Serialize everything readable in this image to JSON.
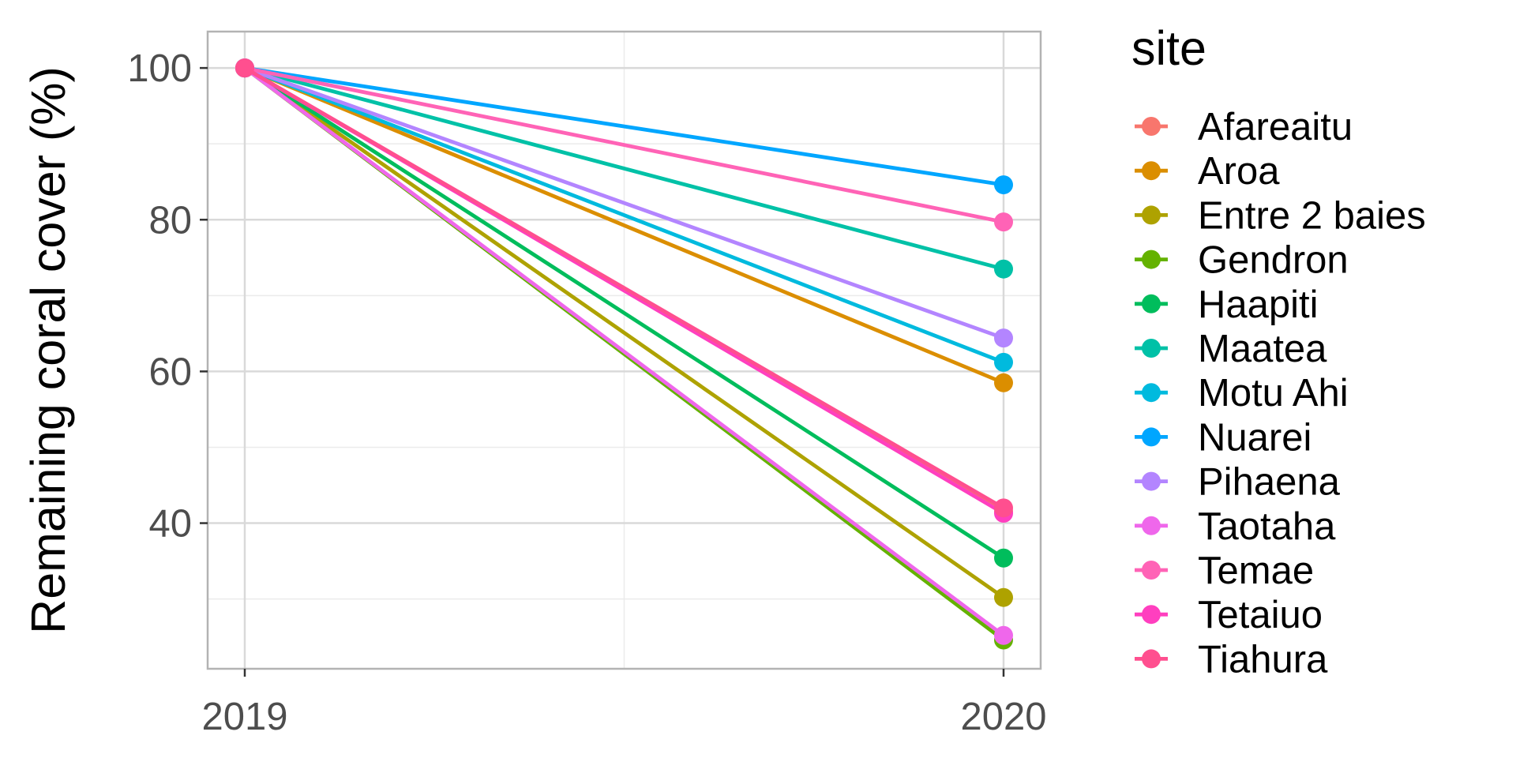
{
  "chart_data": {
    "type": "line",
    "ylabel": "Remaining coral cover (%)",
    "xlabel": "",
    "x": [
      "2019",
      "2020"
    ],
    "ylim": [
      20.8,
      104.8
    ],
    "y_ticks": [
      40,
      60,
      80,
      100
    ],
    "y_minor_ticks": [
      30,
      50,
      70,
      90
    ],
    "grid": true,
    "legend": {
      "title": "site",
      "position": "right"
    },
    "series": [
      {
        "name": "Afareaitu",
        "color": "#F8766D",
        "values": [
          100,
          41.5
        ]
      },
      {
        "name": "Aroa",
        "color": "#DB8E00",
        "values": [
          100,
          58.5
        ]
      },
      {
        "name": "Entre 2 baies",
        "color": "#AEA200",
        "values": [
          100,
          30.2
        ]
      },
      {
        "name": "Gendron",
        "color": "#64B200",
        "values": [
          100,
          24.6
        ]
      },
      {
        "name": "Haapiti",
        "color": "#00BD5C",
        "values": [
          100,
          35.4
        ]
      },
      {
        "name": "Maatea",
        "color": "#00C1A7",
        "values": [
          100,
          73.5
        ]
      },
      {
        "name": "Motu Ahi",
        "color": "#00BADE",
        "values": [
          100,
          61.2
        ]
      },
      {
        "name": "Nuarei",
        "color": "#00A6FF",
        "values": [
          100,
          84.6
        ]
      },
      {
        "name": "Pihaena",
        "color": "#B385FF",
        "values": [
          100,
          64.4
        ]
      },
      {
        "name": "Taotaha",
        "color": "#EF67EB",
        "values": [
          100,
          25.2
        ]
      },
      {
        "name": "Temae",
        "color": "#FF63B6",
        "values": [
          100,
          79.7
        ]
      },
      {
        "name": "Tetaiuo",
        "color": "#FF3FBF",
        "values": [
          100,
          41.3
        ]
      },
      {
        "name": "Tiahura",
        "color": "#FF4F8F",
        "values": [
          100,
          42.0
        ]
      }
    ]
  }
}
